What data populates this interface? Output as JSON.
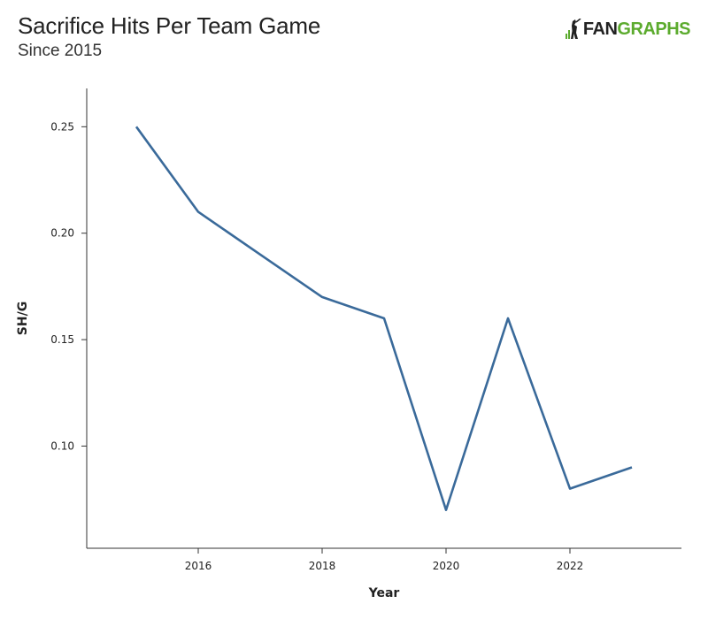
{
  "header": {
    "title": "Sacrifice Hits Per Team Game",
    "subtitle": "Since 2015",
    "logo_text_fan": "FAN",
    "logo_text_graphs": "GRAPHS"
  },
  "colors": {
    "line": "#3a6a9a",
    "axis": "#333333",
    "brand_green": "#5cab2e"
  },
  "chart_data": {
    "type": "line",
    "title": "Sacrifice Hits Per Team Game",
    "subtitle": "Since 2015",
    "xlabel": "Year",
    "ylabel": "SH/G",
    "x": [
      2015,
      2016,
      2017,
      2018,
      2019,
      2020,
      2021,
      2022,
      2023
    ],
    "series": [
      {
        "values": [
          0.25,
          0.21,
          0.19,
          0.17,
          0.16,
          0.07,
          0.16,
          0.08,
          0.09
        ]
      }
    ],
    "xticks": [
      2016,
      2018,
      2020,
      2022
    ],
    "xtick_labels": [
      "2016",
      "2018",
      "2020",
      "2022"
    ],
    "yticks": [
      0.1,
      0.15,
      0.2,
      0.25
    ],
    "ytick_labels": [
      "0.10",
      "0.15",
      "0.20",
      "0.25"
    ],
    "xlim": [
      2014.2,
      2023.8
    ],
    "ylim": [
      0.052,
      0.268
    ],
    "grid": false,
    "legend": "none"
  }
}
